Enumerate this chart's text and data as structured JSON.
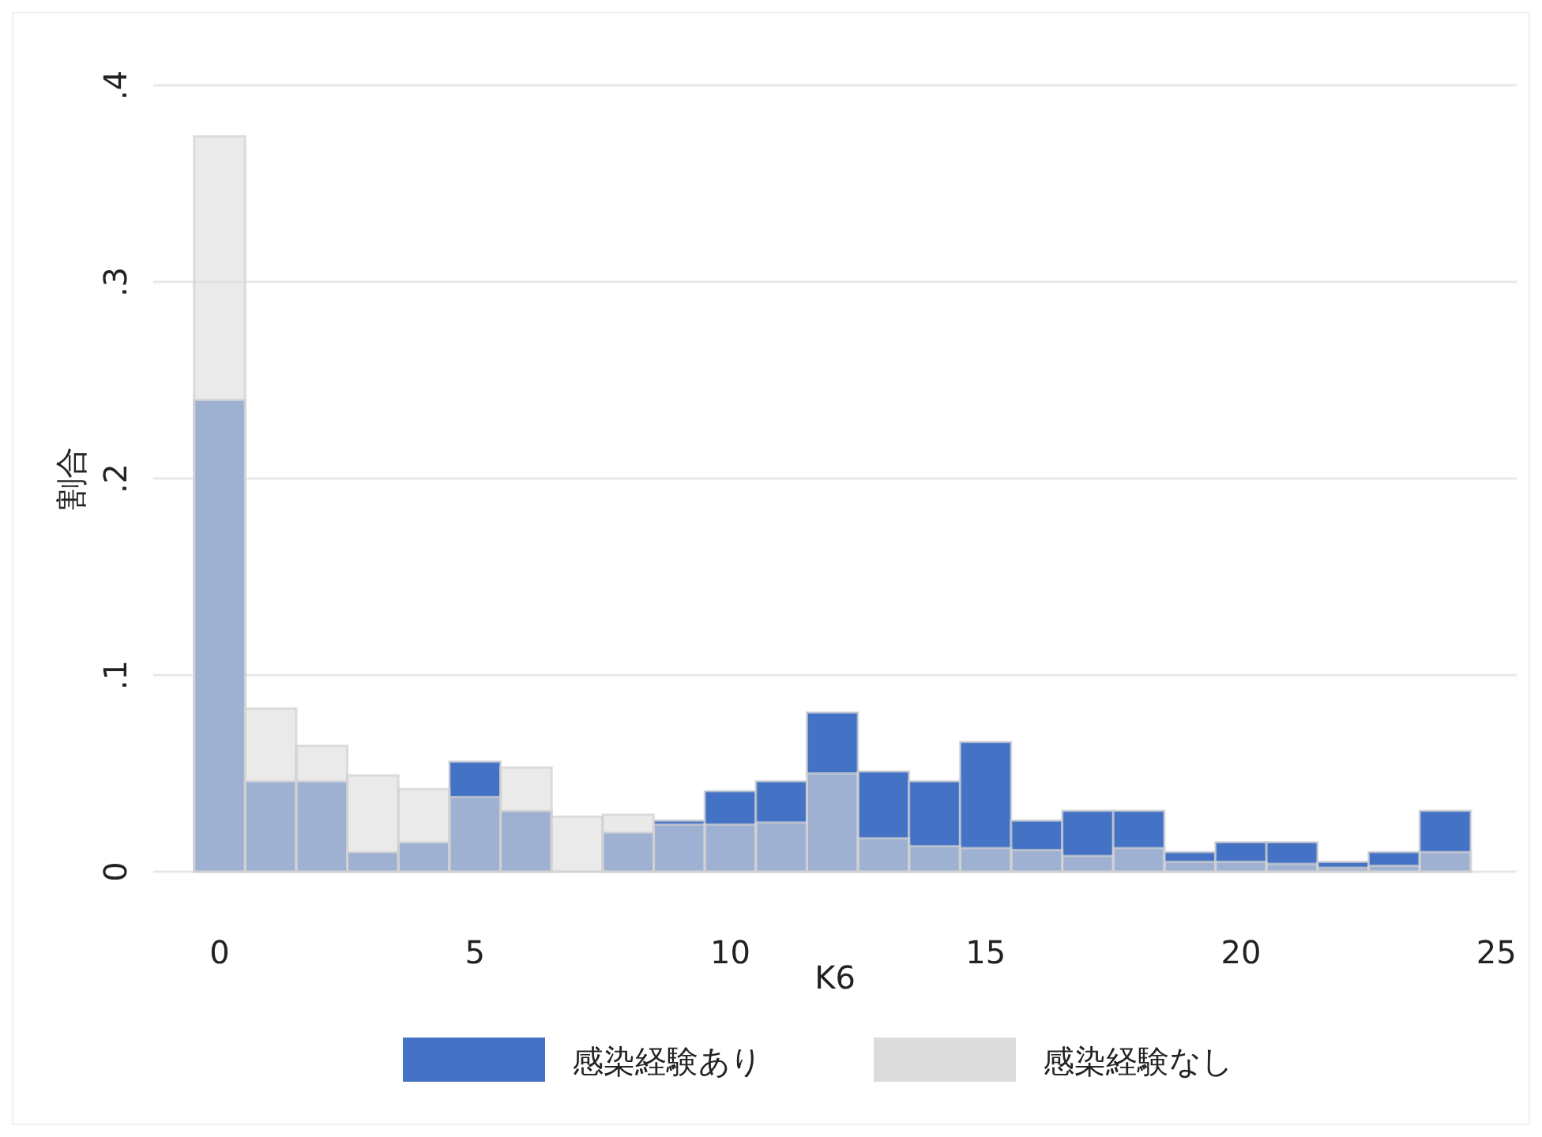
{
  "chart_data": {
    "type": "histogram",
    "xlabel": "K6",
    "ylabel": "割合",
    "bins": [
      -0.5,
      0.5,
      1.5,
      2.5,
      3.5,
      4.5,
      5.5,
      6.5,
      7.5,
      8.5,
      9.5,
      10.5,
      11.5,
      12.5,
      13.5,
      14.5,
      15.5,
      16.5,
      17.5,
      18.5,
      19.5,
      20.5,
      21.5,
      22.5,
      23.5,
      24.5
    ],
    "series": [
      {
        "name": "感染経験あり",
        "color": "#4472c4",
        "values": [
          0.24,
          0.046,
          0.046,
          0.01,
          0.015,
          0.056,
          0.031,
          0,
          0.02,
          0.026,
          0.041,
          0.046,
          0.081,
          0.051,
          0.046,
          0.066,
          0.026,
          0.031,
          0.031,
          0.01,
          0.015,
          0.015,
          0.005,
          0.01,
          0.031
        ]
      },
      {
        "name": "感染経験なし",
        "color": "#dcdcdc",
        "values": [
          0.374,
          0.083,
          0.064,
          0.049,
          0.042,
          0.038,
          0.053,
          0.028,
          0.029,
          0.024,
          0.024,
          0.025,
          0.05,
          0.017,
          0.013,
          0.012,
          0.011,
          0.008,
          0.012,
          0.005,
          0.005,
          0.004,
          0.002,
          0.003,
          0.01
        ]
      }
    ],
    "xlim": [
      -1.3,
      25.4
    ],
    "ylim": [
      0,
      0.4
    ],
    "xticks": [
      0,
      5,
      10,
      15,
      20,
      25
    ],
    "yticks": [
      0,
      {
        "value": 0.1,
        "label": ".1"
      },
      {
        "value": 0.2,
        "label": ".2"
      },
      {
        "value": 0.3,
        "label": ".3"
      },
      {
        "value": 0.4,
        "label": ".4"
      }
    ],
    "grid": "y",
    "legend": "bottom"
  }
}
